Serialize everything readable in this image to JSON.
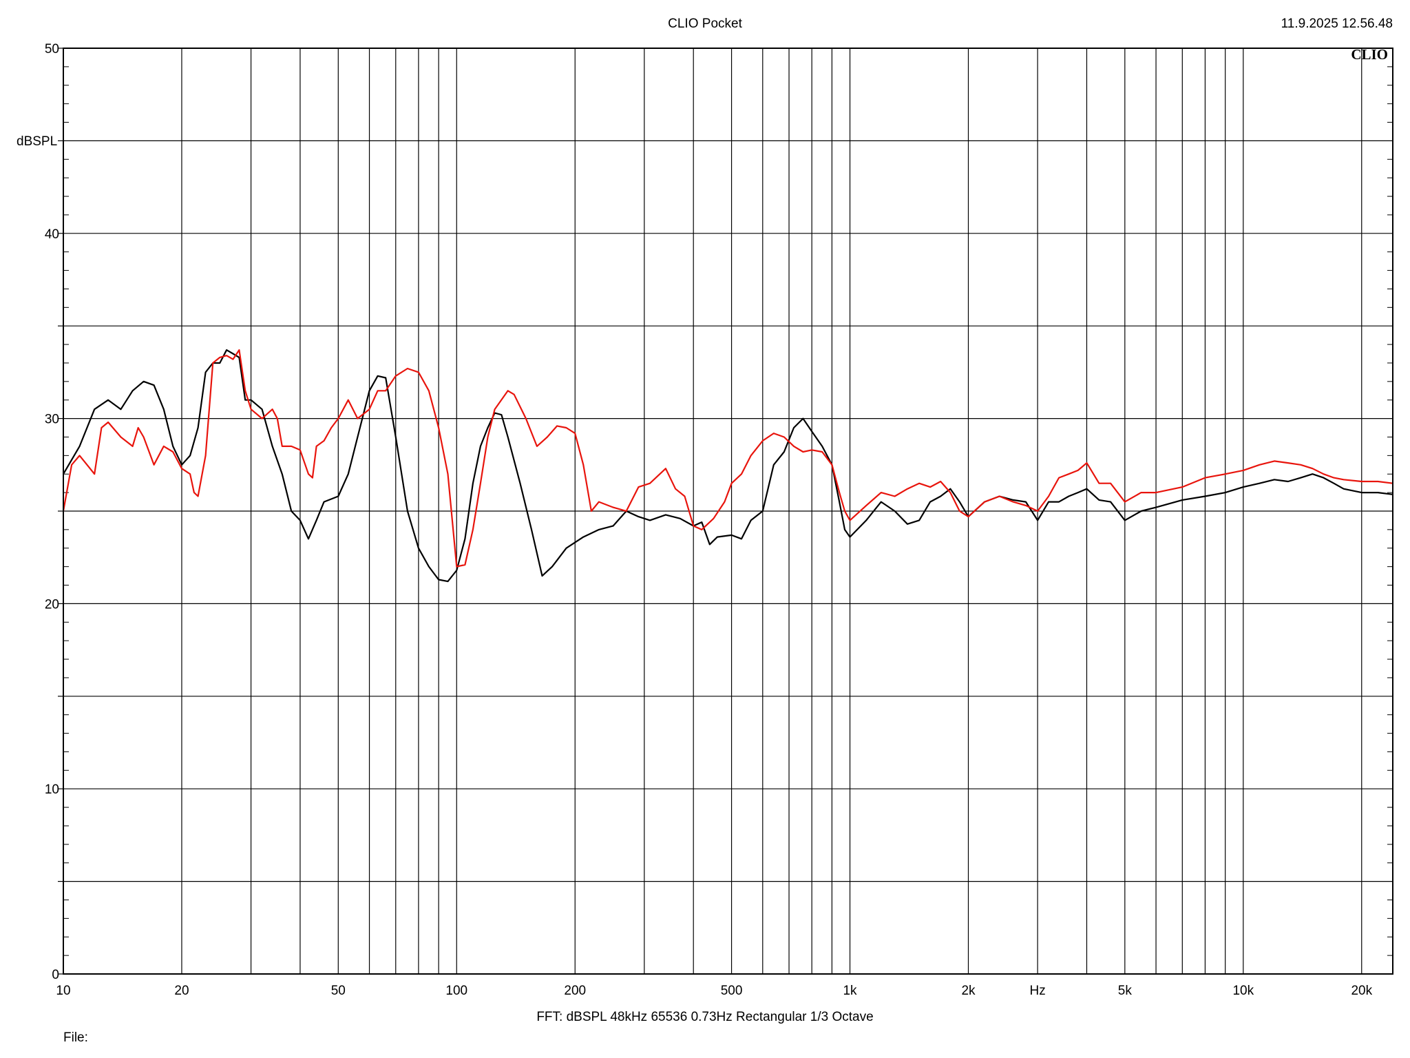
{
  "header": {
    "title": "CLIO Pocket",
    "timestamp": "11.9.2025 12.56.48"
  },
  "footer": {
    "info": "FFT:  dBSPL  48kHz   65536  0.73Hz  Rectangular  1/3 Octave",
    "file_label": "File:"
  },
  "logo": {
    "text": "CLIO"
  },
  "chart_data": {
    "type": "line",
    "title": "CLIO Pocket",
    "xlabel": "Hz",
    "ylabel": "dBSPL",
    "xscale": "log",
    "xlim": [
      10,
      24000
    ],
    "ylim": [
      0,
      50
    ],
    "grid": true,
    "x_ticks": [
      {
        "value": 10,
        "label": "10"
      },
      {
        "value": 20,
        "label": "20"
      },
      {
        "value": 50,
        "label": "50"
      },
      {
        "value": 100,
        "label": "100"
      },
      {
        "value": 200,
        "label": "200"
      },
      {
        "value": 500,
        "label": "500"
      },
      {
        "value": 1000,
        "label": "1k"
      },
      {
        "value": 2000,
        "label": "2k"
      },
      {
        "value": 5000,
        "label": "5k"
      },
      {
        "value": 10000,
        "label": "10k"
      },
      {
        "value": 20000,
        "label": "20k"
      }
    ],
    "y_ticks": [
      0,
      10,
      20,
      30,
      40,
      50
    ],
    "series": [
      {
        "color": "#000000",
        "points": [
          [
            10,
            27
          ],
          [
            11,
            28.5
          ],
          [
            12,
            30.5
          ],
          [
            13,
            31
          ],
          [
            14,
            30.5
          ],
          [
            15,
            31.5
          ],
          [
            16,
            32
          ],
          [
            17,
            31.8
          ],
          [
            18,
            30.5
          ],
          [
            19,
            28.5
          ],
          [
            20,
            27.5
          ],
          [
            21,
            28
          ],
          [
            22,
            29.5
          ],
          [
            23,
            32.5
          ],
          [
            24,
            33
          ],
          [
            25,
            33
          ],
          [
            26,
            33.7
          ],
          [
            27,
            33.5
          ],
          [
            28,
            33.3
          ],
          [
            29,
            31
          ],
          [
            30,
            31
          ],
          [
            32,
            30.5
          ],
          [
            34,
            28.5
          ],
          [
            36,
            27
          ],
          [
            38,
            25
          ],
          [
            40,
            24.5
          ],
          [
            42,
            23.5
          ],
          [
            44,
            24.5
          ],
          [
            46,
            25.5
          ],
          [
            50,
            25.8
          ],
          [
            53,
            27
          ],
          [
            56,
            29
          ],
          [
            60,
            31.5
          ],
          [
            63,
            32.3
          ],
          [
            66,
            32.2
          ],
          [
            70,
            29
          ],
          [
            75,
            25
          ],
          [
            80,
            23
          ],
          [
            85,
            22
          ],
          [
            90,
            21.3
          ],
          [
            95,
            21.2
          ],
          [
            100,
            21.8
          ],
          [
            105,
            23.5
          ],
          [
            110,
            26.5
          ],
          [
            115,
            28.5
          ],
          [
            120,
            29.5
          ],
          [
            125,
            30.3
          ],
          [
            130,
            30.2
          ],
          [
            135,
            29
          ],
          [
            145,
            26.5
          ],
          [
            155,
            24
          ],
          [
            165,
            21.5
          ],
          [
            175,
            22
          ],
          [
            190,
            23
          ],
          [
            210,
            23.6
          ],
          [
            230,
            24
          ],
          [
            250,
            24.2
          ],
          [
            270,
            25
          ],
          [
            290,
            24.7
          ],
          [
            310,
            24.5
          ],
          [
            340,
            24.8
          ],
          [
            370,
            24.6
          ],
          [
            400,
            24.2
          ],
          [
            420,
            24.4
          ],
          [
            440,
            23.2
          ],
          [
            460,
            23.6
          ],
          [
            500,
            23.7
          ],
          [
            530,
            23.5
          ],
          [
            560,
            24.5
          ],
          [
            600,
            25
          ],
          [
            640,
            27.5
          ],
          [
            680,
            28.2
          ],
          [
            720,
            29.5
          ],
          [
            760,
            30
          ],
          [
            800,
            29.3
          ],
          [
            850,
            28.5
          ],
          [
            900,
            27.5
          ],
          [
            940,
            25.5
          ],
          [
            970,
            24
          ],
          [
            1000,
            23.6
          ],
          [
            1100,
            24.5
          ],
          [
            1200,
            25.5
          ],
          [
            1300,
            25
          ],
          [
            1400,
            24.3
          ],
          [
            1500,
            24.5
          ],
          [
            1600,
            25.5
          ],
          [
            1700,
            25.8
          ],
          [
            1800,
            26.2
          ],
          [
            1900,
            25.5
          ],
          [
            2000,
            24.7
          ],
          [
            2200,
            25.5
          ],
          [
            2400,
            25.8
          ],
          [
            2600,
            25.6
          ],
          [
            2800,
            25.5
          ],
          [
            3000,
            24.5
          ],
          [
            3200,
            25.5
          ],
          [
            3400,
            25.5
          ],
          [
            3600,
            25.8
          ],
          [
            3800,
            26
          ],
          [
            4000,
            26.2
          ],
          [
            4300,
            25.6
          ],
          [
            4600,
            25.5
          ],
          [
            5000,
            24.5
          ],
          [
            5500,
            25
          ],
          [
            6000,
            25.2
          ],
          [
            7000,
            25.6
          ],
          [
            8000,
            25.8
          ],
          [
            9000,
            26
          ],
          [
            10000,
            26.3
          ],
          [
            11000,
            26.5
          ],
          [
            12000,
            26.7
          ],
          [
            13000,
            26.6
          ],
          [
            14000,
            26.8
          ],
          [
            15000,
            27
          ],
          [
            16000,
            26.8
          ],
          [
            17000,
            26.5
          ],
          [
            18000,
            26.2
          ],
          [
            20000,
            26
          ],
          [
            22000,
            26
          ],
          [
            24000,
            25.9
          ]
        ]
      },
      {
        "color": "#e8140c",
        "points": [
          [
            10,
            25
          ],
          [
            10.5,
            27.5
          ],
          [
            11,
            28
          ],
          [
            12,
            27
          ],
          [
            12.5,
            29.5
          ],
          [
            13,
            29.8
          ],
          [
            14,
            29
          ],
          [
            15,
            28.5
          ],
          [
            15.5,
            29.5
          ],
          [
            16,
            29
          ],
          [
            17,
            27.5
          ],
          [
            18,
            28.5
          ],
          [
            19,
            28.2
          ],
          [
            20,
            27.3
          ],
          [
            21,
            27
          ],
          [
            21.5,
            26
          ],
          [
            22,
            25.8
          ],
          [
            23,
            28
          ],
          [
            24,
            33
          ],
          [
            25,
            33.3
          ],
          [
            26,
            33.4
          ],
          [
            27,
            33.2
          ],
          [
            28,
            33.7
          ],
          [
            29,
            31.5
          ],
          [
            30,
            30.5
          ],
          [
            32,
            30
          ],
          [
            34,
            30.5
          ],
          [
            35,
            30
          ],
          [
            36,
            28.5
          ],
          [
            38,
            28.5
          ],
          [
            40,
            28.3
          ],
          [
            42,
            27
          ],
          [
            43,
            26.8
          ],
          [
            44,
            28.5
          ],
          [
            46,
            28.8
          ],
          [
            48,
            29.5
          ],
          [
            50,
            30
          ],
          [
            53,
            31
          ],
          [
            56,
            30
          ],
          [
            60,
            30.5
          ],
          [
            63,
            31.5
          ],
          [
            66,
            31.5
          ],
          [
            70,
            32.3
          ],
          [
            75,
            32.7
          ],
          [
            80,
            32.5
          ],
          [
            85,
            31.5
          ],
          [
            90,
            29.5
          ],
          [
            95,
            27
          ],
          [
            100,
            22
          ],
          [
            105,
            22.1
          ],
          [
            110,
            24
          ],
          [
            115,
            26.5
          ],
          [
            120,
            29
          ],
          [
            125,
            30.5
          ],
          [
            135,
            31.5
          ],
          [
            140,
            31.3
          ],
          [
            150,
            30
          ],
          [
            160,
            28.5
          ],
          [
            170,
            29
          ],
          [
            180,
            29.6
          ],
          [
            190,
            29.5
          ],
          [
            200,
            29.2
          ],
          [
            210,
            27.5
          ],
          [
            220,
            25
          ],
          [
            230,
            25.5
          ],
          [
            250,
            25.2
          ],
          [
            270,
            25
          ],
          [
            290,
            26.3
          ],
          [
            310,
            26.5
          ],
          [
            340,
            27.3
          ],
          [
            360,
            26.2
          ],
          [
            380,
            25.8
          ],
          [
            400,
            24.2
          ],
          [
            420,
            24
          ],
          [
            450,
            24.6
          ],
          [
            480,
            25.5
          ],
          [
            500,
            26.5
          ],
          [
            530,
            27
          ],
          [
            560,
            28
          ],
          [
            600,
            28.8
          ],
          [
            640,
            29.2
          ],
          [
            680,
            29
          ],
          [
            720,
            28.5
          ],
          [
            760,
            28.2
          ],
          [
            800,
            28.3
          ],
          [
            850,
            28.2
          ],
          [
            900,
            27.5
          ],
          [
            940,
            26
          ],
          [
            970,
            25
          ],
          [
            1000,
            24.5
          ],
          [
            1100,
            25.3
          ],
          [
            1200,
            26
          ],
          [
            1300,
            25.8
          ],
          [
            1400,
            26.2
          ],
          [
            1500,
            26.5
          ],
          [
            1600,
            26.3
          ],
          [
            1700,
            26.6
          ],
          [
            1800,
            26
          ],
          [
            1900,
            25
          ],
          [
            2000,
            24.7
          ],
          [
            2200,
            25.5
          ],
          [
            2400,
            25.8
          ],
          [
            2600,
            25.5
          ],
          [
            2800,
            25.3
          ],
          [
            3000,
            25
          ],
          [
            3200,
            25.8
          ],
          [
            3400,
            26.8
          ],
          [
            3600,
            27
          ],
          [
            3800,
            27.2
          ],
          [
            4000,
            27.6
          ],
          [
            4300,
            26.5
          ],
          [
            4600,
            26.5
          ],
          [
            5000,
            25.5
          ],
          [
            5500,
            26
          ],
          [
            6000,
            26
          ],
          [
            7000,
            26.3
          ],
          [
            8000,
            26.8
          ],
          [
            9000,
            27
          ],
          [
            10000,
            27.2
          ],
          [
            11000,
            27.5
          ],
          [
            12000,
            27.7
          ],
          [
            13000,
            27.6
          ],
          [
            14000,
            27.5
          ],
          [
            15000,
            27.3
          ],
          [
            16000,
            27
          ],
          [
            17000,
            26.8
          ],
          [
            18000,
            26.7
          ],
          [
            20000,
            26.6
          ],
          [
            22000,
            26.6
          ],
          [
            24000,
            26.5
          ]
        ]
      }
    ]
  }
}
